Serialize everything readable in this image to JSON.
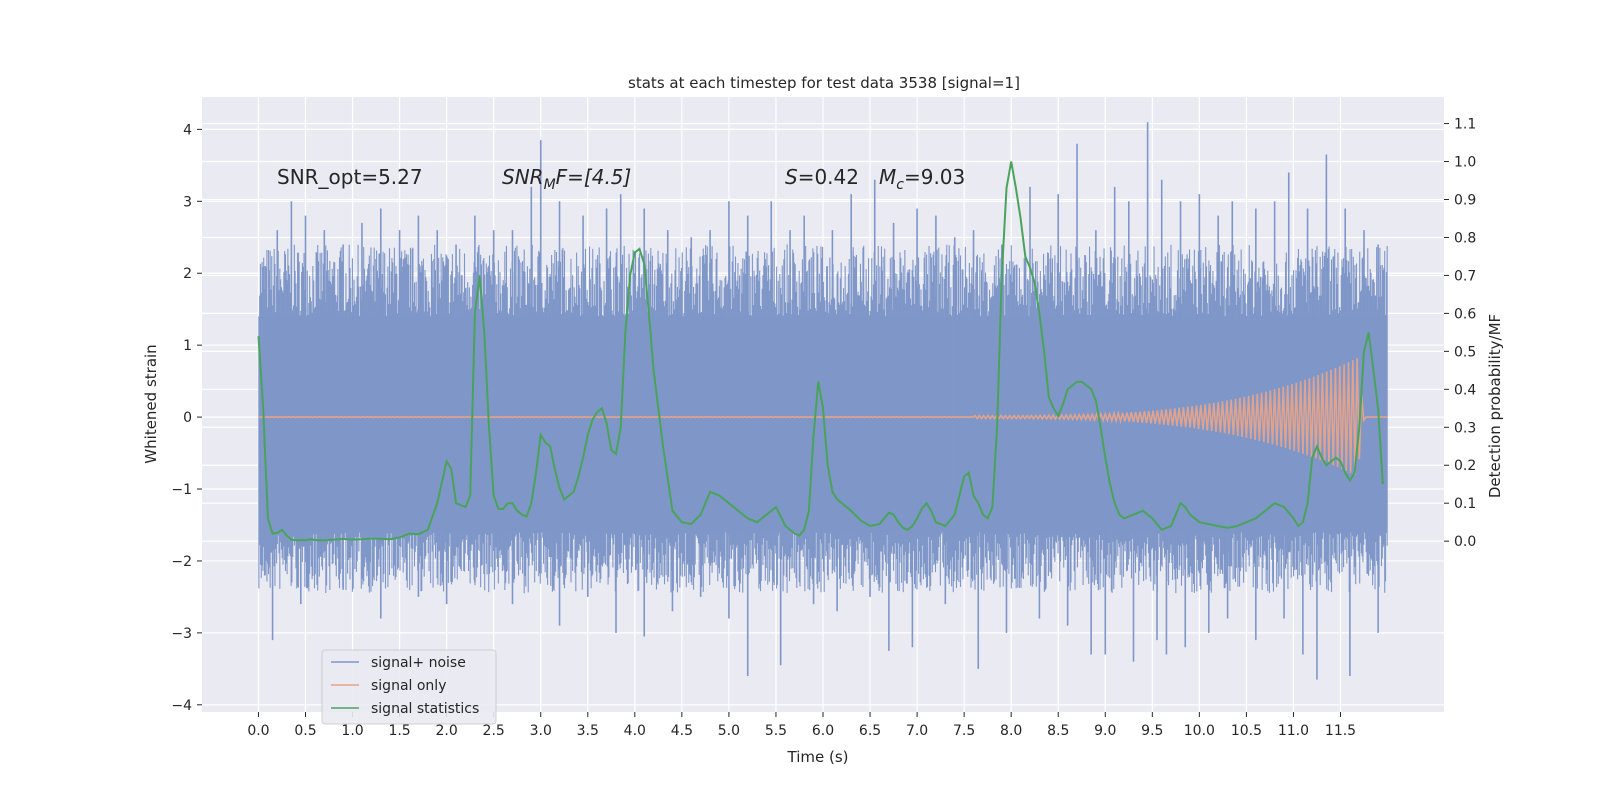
{
  "chart_data": {
    "type": "line",
    "title": "stats at each timestep for test data 3538 [signal=1]",
    "xlabel": "Time (s)",
    "ylabel": "Whitened strain",
    "ylabel_right": "Detection probability/MF",
    "xlim": [
      -0.6,
      12.6
    ],
    "ylim": [
      -4.1,
      4.45
    ],
    "ylim_right": [
      -0.45,
      1.17
    ],
    "x_ticks": [
      0.0,
      0.5,
      1.0,
      1.5,
      2.0,
      2.5,
      3.0,
      3.5,
      4.0,
      4.5,
      5.0,
      5.5,
      6.0,
      6.5,
      7.0,
      7.5,
      8.0,
      8.5,
      9.0,
      9.5,
      10.0,
      10.5,
      11.0,
      11.5
    ],
    "x_tick_labels": [
      "0.0",
      "0.5",
      "1.0",
      "1.5",
      "2.0",
      "2.5",
      "3.0",
      "3.5",
      "4.0",
      "4.5",
      "5.0",
      "5.5",
      "6.0",
      "6.5",
      "7.0",
      "7.5",
      "8.0",
      "8.5",
      "9.0",
      "9.5",
      "10.0",
      "10.5",
      "11.0",
      "11.5"
    ],
    "y_ticks": [
      -4,
      -3,
      -2,
      -1,
      0,
      1,
      2,
      3,
      4
    ],
    "y_tick_labels": [
      "−4",
      "−3",
      "−2",
      "−1",
      "0",
      "1",
      "2",
      "3",
      "4"
    ],
    "y_ticks_right": [
      0.0,
      0.1,
      0.2,
      0.3,
      0.4,
      0.5,
      0.6,
      0.7,
      0.8,
      0.9,
      1.0,
      1.1
    ],
    "y_tick_labels_right": [
      "0.0",
      "0.1",
      "0.2",
      "0.3",
      "0.4",
      "0.5",
      "0.6",
      "0.7",
      "0.8",
      "0.9",
      "1.0",
      "1.1"
    ],
    "grid": true,
    "legend_position": "bottom-left",
    "annotations": {
      "snr_opt": "SNR_opt=5.27",
      "snr_mf_main": "SNR",
      "snr_mf_sub": "M",
      "snr_mf_rest": "F=[4.5]",
      "s_sym": "S",
      "s_val": "=0.42",
      "mc_sym": "M",
      "mc_sub": "c",
      "mc_val": "=9.03"
    },
    "series": [
      {
        "name": "signal+ noise",
        "color": "#7f97c8",
        "duration": 12.0,
        "envelope_upper": [
          1.4,
          1.4
        ],
        "envelope_lower": [
          -1.6,
          -1.6
        ],
        "spikes": [
          [
            0.07,
            2.1
          ],
          [
            0.2,
            2.6
          ],
          [
            0.35,
            3.0
          ],
          [
            0.5,
            2.8
          ],
          [
            0.7,
            2.6
          ],
          [
            0.9,
            2.4
          ],
          [
            1.1,
            2.7
          ],
          [
            1.3,
            2.9
          ],
          [
            1.5,
            2.6
          ],
          [
            1.7,
            2.8
          ],
          [
            1.9,
            2.6
          ],
          [
            2.1,
            2.4
          ],
          [
            2.3,
            2.8
          ],
          [
            2.5,
            2.6
          ],
          [
            2.7,
            2.6
          ],
          [
            2.9,
            3.2
          ],
          [
            3.0,
            3.85
          ],
          [
            3.2,
            3.0
          ],
          [
            3.45,
            2.8
          ],
          [
            3.7,
            2.9
          ],
          [
            3.85,
            3.1
          ],
          [
            4.1,
            2.9
          ],
          [
            4.35,
            2.6
          ],
          [
            4.6,
            2.5
          ],
          [
            4.8,
            2.6
          ],
          [
            5.0,
            3.0
          ],
          [
            5.2,
            2.8
          ],
          [
            5.45,
            3.0
          ],
          [
            5.65,
            2.6
          ],
          [
            5.8,
            2.8
          ],
          [
            6.1,
            2.6
          ],
          [
            6.3,
            3.1
          ],
          [
            6.55,
            3.3
          ],
          [
            6.75,
            2.7
          ],
          [
            7.0,
            2.9
          ],
          [
            7.2,
            2.8
          ],
          [
            7.4,
            2.5
          ],
          [
            7.6,
            2.6
          ],
          [
            7.9,
            2.4
          ],
          [
            8.2,
            3.2
          ],
          [
            8.5,
            3.1
          ],
          [
            8.7,
            3.8
          ],
          [
            8.9,
            2.6
          ],
          [
            9.1,
            3.2
          ],
          [
            9.25,
            3.0
          ],
          [
            9.45,
            4.1
          ],
          [
            9.6,
            3.3
          ],
          [
            9.8,
            3.0
          ],
          [
            10.0,
            3.1
          ],
          [
            10.2,
            2.8
          ],
          [
            10.35,
            3.0
          ],
          [
            10.6,
            2.9
          ],
          [
            10.8,
            3.0
          ],
          [
            10.95,
            3.4
          ],
          [
            11.15,
            2.9
          ],
          [
            11.35,
            3.65
          ],
          [
            11.55,
            2.9
          ],
          [
            11.75,
            2.6
          ],
          [
            11.9,
            2.4
          ],
          [
            0.07,
            -2.2
          ],
          [
            0.15,
            -3.1
          ],
          [
            0.45,
            -2.6
          ],
          [
            0.9,
            -2.4
          ],
          [
            1.3,
            -2.8
          ],
          [
            1.7,
            -2.5
          ],
          [
            2.0,
            -2.6
          ],
          [
            2.3,
            -2.3
          ],
          [
            2.7,
            -2.6
          ],
          [
            3.2,
            -2.9
          ],
          [
            3.5,
            -2.5
          ],
          [
            3.8,
            -3.0
          ],
          [
            4.1,
            -3.05
          ],
          [
            4.4,
            -2.7
          ],
          [
            4.7,
            -2.5
          ],
          [
            5.0,
            -2.8
          ],
          [
            5.2,
            -3.6
          ],
          [
            5.55,
            -3.45
          ],
          [
            5.9,
            -2.6
          ],
          [
            6.15,
            -2.7
          ],
          [
            6.5,
            -2.5
          ],
          [
            6.7,
            -3.25
          ],
          [
            6.95,
            -3.2
          ],
          [
            7.3,
            -2.6
          ],
          [
            7.65,
            -3.5
          ],
          [
            7.95,
            -3.0
          ],
          [
            8.3,
            -2.8
          ],
          [
            8.6,
            -2.9
          ],
          [
            8.85,
            -3.3
          ],
          [
            9.0,
            -3.3
          ],
          [
            9.3,
            -3.4
          ],
          [
            9.55,
            -3.1
          ],
          [
            9.65,
            -3.3
          ],
          [
            9.85,
            -3.2
          ],
          [
            10.1,
            -3.0
          ],
          [
            10.3,
            -2.8
          ],
          [
            10.6,
            -3.1
          ],
          [
            10.9,
            -2.8
          ],
          [
            11.1,
            -3.3
          ],
          [
            11.25,
            -3.65
          ],
          [
            11.6,
            -3.6
          ],
          [
            11.9,
            -3.0
          ]
        ]
      },
      {
        "name": "signal only",
        "color": "#e8a38a",
        "chirp_start": 7.6,
        "chirp_peak": 11.68,
        "chirp_end": 11.75,
        "amplitude_start": 0.02,
        "amplitude_peak": 0.82
      },
      {
        "name": "signal statistics",
        "color": "#4aa35a",
        "x": [
          0.0,
          0.05,
          0.1,
          0.15,
          0.2,
          0.25,
          0.3,
          0.35,
          0.4,
          0.45,
          0.5,
          0.55,
          0.6,
          0.7,
          0.8,
          0.9,
          1.0,
          1.1,
          1.2,
          1.3,
          1.4,
          1.5,
          1.6,
          1.7,
          1.8,
          1.9,
          2.0,
          2.05,
          2.1,
          2.2,
          2.25,
          2.3,
          2.35,
          2.4,
          2.45,
          2.5,
          2.55,
          2.6,
          2.65,
          2.7,
          2.75,
          2.8,
          2.85,
          2.9,
          2.95,
          3.0,
          3.05,
          3.1,
          3.15,
          3.2,
          3.25,
          3.3,
          3.35,
          3.4,
          3.45,
          3.5,
          3.55,
          3.6,
          3.65,
          3.7,
          3.75,
          3.8,
          3.85,
          3.9,
          3.95,
          4.0,
          4.05,
          4.1,
          4.15,
          4.2,
          4.3,
          4.4,
          4.5,
          4.6,
          4.7,
          4.8,
          4.9,
          5.0,
          5.1,
          5.2,
          5.3,
          5.4,
          5.5,
          5.6,
          5.7,
          5.75,
          5.8,
          5.85,
          5.9,
          5.95,
          6.0,
          6.05,
          6.1,
          6.15,
          6.2,
          6.3,
          6.4,
          6.5,
          6.6,
          6.7,
          6.75,
          6.8,
          6.85,
          6.9,
          6.95,
          7.0,
          7.05,
          7.1,
          7.15,
          7.2,
          7.3,
          7.4,
          7.5,
          7.55,
          7.6,
          7.65,
          7.7,
          7.75,
          7.8,
          7.85,
          7.9,
          7.95,
          8.0,
          8.05,
          8.1,
          8.15,
          8.2,
          8.25,
          8.3,
          8.35,
          8.4,
          8.45,
          8.5,
          8.55,
          8.6,
          8.65,
          8.7,
          8.75,
          8.8,
          8.85,
          8.9,
          8.95,
          9.0,
          9.05,
          9.1,
          9.15,
          9.2,
          9.3,
          9.4,
          9.5,
          9.6,
          9.7,
          9.75,
          9.8,
          9.85,
          9.9,
          9.95,
          10.0,
          10.1,
          10.2,
          10.3,
          10.4,
          10.5,
          10.6,
          10.7,
          10.8,
          10.9,
          11.0,
          11.05,
          11.1,
          11.15,
          11.2,
          11.25,
          11.3,
          11.35,
          11.4,
          11.45,
          11.5,
          11.55,
          11.6,
          11.65,
          11.7,
          11.75,
          11.8,
          11.85,
          11.9,
          11.95
        ],
        "values": [
          0.54,
          0.35,
          0.06,
          0.02,
          0.022,
          0.03,
          0.015,
          0.004,
          0.002,
          0.003,
          0.002,
          0.005,
          0.003,
          0.002,
          0.004,
          0.006,
          0.004,
          0.005,
          0.007,
          0.006,
          0.005,
          0.01,
          0.02,
          0.018,
          0.03,
          0.1,
          0.21,
          0.19,
          0.1,
          0.09,
          0.12,
          0.6,
          0.7,
          0.55,
          0.3,
          0.12,
          0.085,
          0.085,
          0.1,
          0.1,
          0.08,
          0.07,
          0.065,
          0.1,
          0.18,
          0.28,
          0.26,
          0.25,
          0.19,
          0.14,
          0.11,
          0.12,
          0.13,
          0.17,
          0.22,
          0.28,
          0.32,
          0.34,
          0.35,
          0.31,
          0.24,
          0.23,
          0.3,
          0.55,
          0.7,
          0.76,
          0.77,
          0.73,
          0.6,
          0.45,
          0.25,
          0.08,
          0.05,
          0.045,
          0.07,
          0.13,
          0.12,
          0.1,
          0.08,
          0.06,
          0.05,
          0.07,
          0.09,
          0.04,
          0.02,
          0.015,
          0.03,
          0.08,
          0.28,
          0.42,
          0.35,
          0.2,
          0.13,
          0.11,
          0.1,
          0.08,
          0.055,
          0.04,
          0.045,
          0.075,
          0.07,
          0.05,
          0.035,
          0.03,
          0.04,
          0.06,
          0.085,
          0.1,
          0.08,
          0.05,
          0.04,
          0.07,
          0.17,
          0.18,
          0.12,
          0.1,
          0.07,
          0.06,
          0.09,
          0.3,
          0.7,
          0.93,
          1.0,
          0.93,
          0.85,
          0.75,
          0.72,
          0.68,
          0.6,
          0.5,
          0.38,
          0.35,
          0.33,
          0.36,
          0.4,
          0.41,
          0.42,
          0.42,
          0.41,
          0.4,
          0.37,
          0.3,
          0.22,
          0.15,
          0.1,
          0.07,
          0.06,
          0.07,
          0.08,
          0.06,
          0.03,
          0.04,
          0.07,
          0.1,
          0.09,
          0.07,
          0.06,
          0.05,
          0.045,
          0.04,
          0.035,
          0.04,
          0.05,
          0.06,
          0.08,
          0.1,
          0.09,
          0.06,
          0.04,
          0.05,
          0.1,
          0.22,
          0.25,
          0.22,
          0.2,
          0.21,
          0.22,
          0.21,
          0.18,
          0.16,
          0.18,
          0.3,
          0.5,
          0.55,
          0.45,
          0.35,
          0.15
        ]
      }
    ]
  }
}
